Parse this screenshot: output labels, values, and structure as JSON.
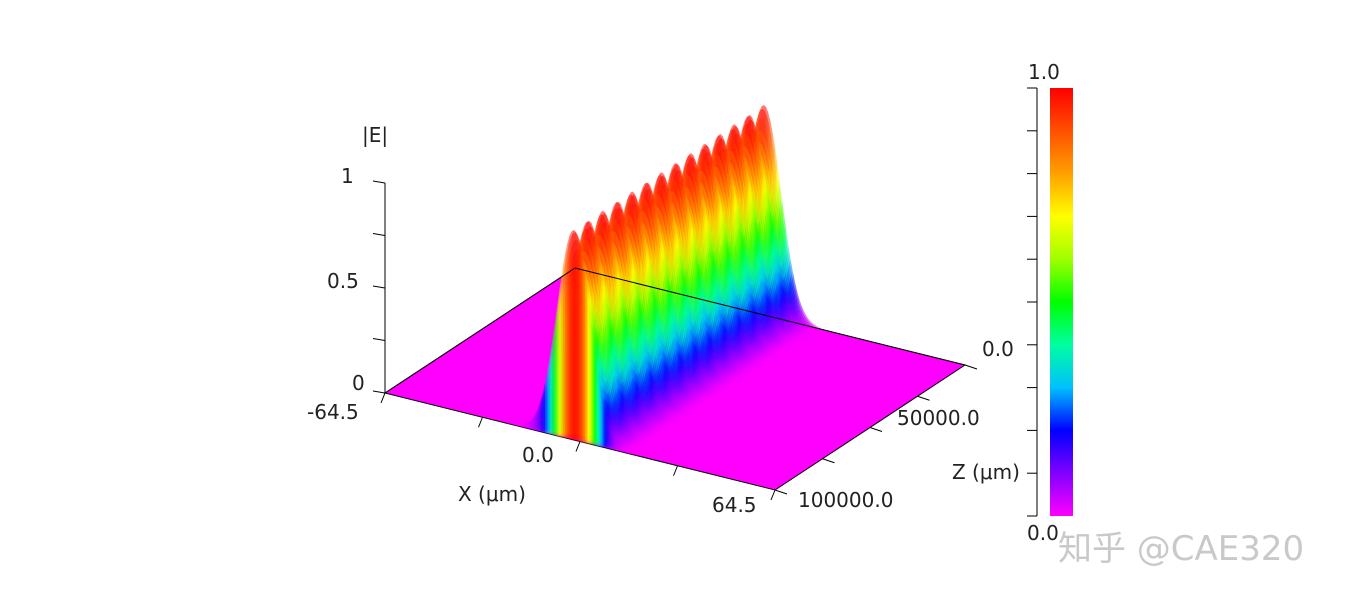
{
  "chart_data": {
    "type": "surface",
    "title": "",
    "zlabel": "|E|",
    "xlabel": "X (μm)",
    "ylabel": "Z (μm)",
    "x_range": [
      -64.5,
      64.5
    ],
    "z_range": [
      0.0,
      100000.0
    ],
    "e_range": [
      0,
      1
    ],
    "x_ticks": [
      "-64.5",
      "0.0",
      "64.5"
    ],
    "z_ticks": [
      "0.0",
      "50000.0",
      "100000.0"
    ],
    "e_ticks": [
      "0",
      "0.5",
      "1"
    ],
    "beam": {
      "profile": "gaussian",
      "center_x": -2.0,
      "width_x": 8.0,
      "peak": 1.0,
      "periodic_peaks_along_z": 13,
      "modulation_min": 0.8
    },
    "colorbar": {
      "min_label": "0.0",
      "max_label": "1.0",
      "colors": [
        "#ff00ff",
        "#8000ff",
        "#0000ff",
        "#00c0ff",
        "#00ffa0",
        "#00ff00",
        "#a0ff00",
        "#ffff00",
        "#ffa000",
        "#ff5000",
        "#ff0000"
      ]
    },
    "grid": false,
    "legend": "colorbar-right"
  },
  "watermark": "知乎 @CAE320"
}
